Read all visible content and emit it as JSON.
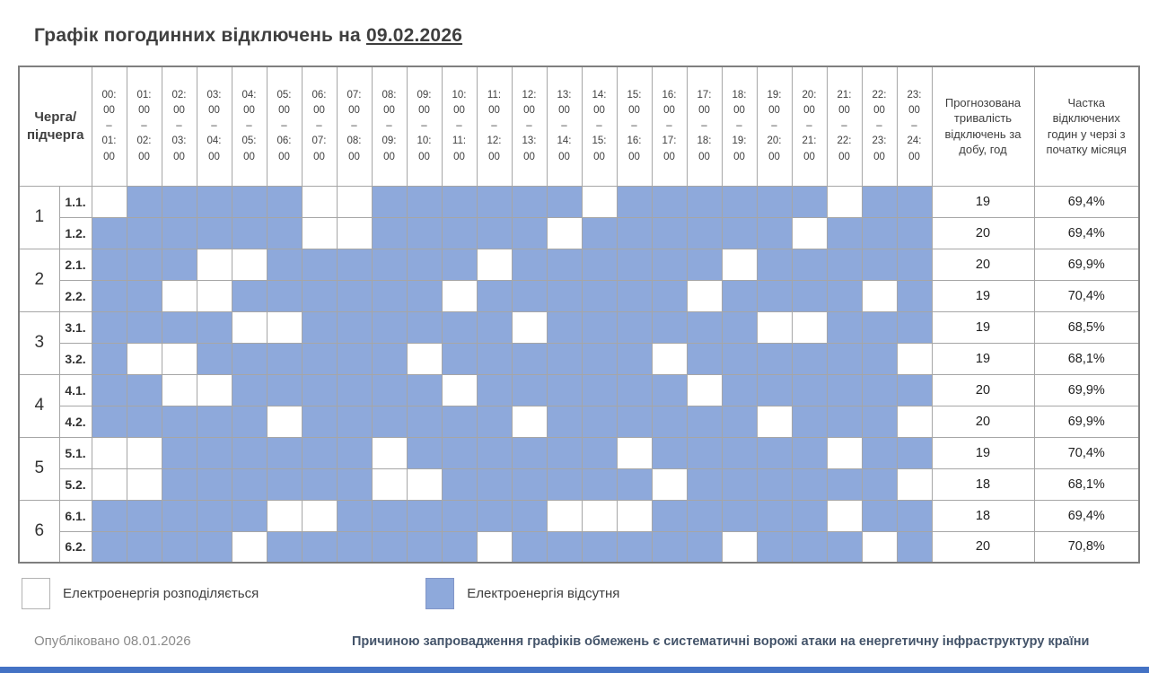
{
  "title": {
    "text": "Графік погодинних відключень на",
    "date": "09.02.2026"
  },
  "colors": {
    "outage_fill": "#8ea9db",
    "grid_line": "#a6a6a6",
    "outer_border": "#7f7f7f",
    "bottom_bar": "#4472c4",
    "reason_text": "#44546a"
  },
  "chart_data": {
    "type": "heatmap",
    "title": "Графік погодинних відключень на 09.02.2026",
    "corner_label": "Черга/\nпідчерга",
    "dash": "–",
    "col_duration_header": "Прогнозована тривалість відключень за добу, год",
    "col_share_header": "Частка відключених годин у черзі з початку місяця",
    "hours": [
      [
        "00:00",
        "01:00"
      ],
      [
        "01:00",
        "02:00"
      ],
      [
        "02:00",
        "03:00"
      ],
      [
        "03:00",
        "04:00"
      ],
      [
        "04:00",
        "05:00"
      ],
      [
        "05:00",
        "06:00"
      ],
      [
        "06:00",
        "07:00"
      ],
      [
        "07:00",
        "08:00"
      ],
      [
        "08:00",
        "09:00"
      ],
      [
        "09:00",
        "10:00"
      ],
      [
        "10:00",
        "11:00"
      ],
      [
        "11:00",
        "12:00"
      ],
      [
        "12:00",
        "13:00"
      ],
      [
        "13:00",
        "14:00"
      ],
      [
        "14:00",
        "15:00"
      ],
      [
        "15:00",
        "16:00"
      ],
      [
        "16:00",
        "17:00"
      ],
      [
        "17:00",
        "18:00"
      ],
      [
        "18:00",
        "19:00"
      ],
      [
        "19:00",
        "20:00"
      ],
      [
        "20:00",
        "21:00"
      ],
      [
        "21:00",
        "22:00"
      ],
      [
        "22:00",
        "23:00"
      ],
      [
        "23:00",
        "24:00"
      ]
    ],
    "cell_legend": {
      "on": "Електроенергія розподіляється",
      "off": "Електроенергія відсутня"
    },
    "queues": [
      {
        "queue": "1",
        "subs": [
          {
            "label": "1.1.",
            "duration": "19",
            "share": "69,4%",
            "on_hours": [
              0,
              6,
              7,
              14,
              21
            ]
          },
          {
            "label": "1.2.",
            "duration": "20",
            "share": "69,4%",
            "on_hours": [
              6,
              7,
              13,
              20
            ]
          }
        ]
      },
      {
        "queue": "2",
        "subs": [
          {
            "label": "2.1.",
            "duration": "20",
            "share": "69,9%",
            "on_hours": [
              3,
              4,
              11,
              18
            ]
          },
          {
            "label": "2.2.",
            "duration": "19",
            "share": "70,4%",
            "on_hours": [
              2,
              3,
              10,
              17,
              22
            ]
          }
        ]
      },
      {
        "queue": "3",
        "subs": [
          {
            "label": "3.1.",
            "duration": "19",
            "share": "68,5%",
            "on_hours": [
              4,
              5,
              12,
              19,
              20
            ]
          },
          {
            "label": "3.2.",
            "duration": "19",
            "share": "68,1%",
            "on_hours": [
              1,
              2,
              9,
              16,
              23
            ]
          }
        ]
      },
      {
        "queue": "4",
        "subs": [
          {
            "label": "4.1.",
            "duration": "20",
            "share": "69,9%",
            "on_hours": [
              2,
              3,
              10,
              17
            ]
          },
          {
            "label": "4.2.",
            "duration": "20",
            "share": "69,9%",
            "on_hours": [
              5,
              12,
              19,
              23
            ]
          }
        ]
      },
      {
        "queue": "5",
        "subs": [
          {
            "label": "5.1.",
            "duration": "19",
            "share": "70,4%",
            "on_hours": [
              0,
              1,
              8,
              15,
              21
            ]
          },
          {
            "label": "5.2.",
            "duration": "18",
            "share": "68,1%",
            "on_hours": [
              0,
              1,
              8,
              9,
              16,
              23
            ]
          }
        ]
      },
      {
        "queue": "6",
        "subs": [
          {
            "label": "6.1.",
            "duration": "18",
            "share": "69,4%",
            "on_hours": [
              5,
              6,
              13,
              14,
              15,
              21
            ]
          },
          {
            "label": "6.2.",
            "duration": "20",
            "share": "70,8%",
            "on_hours": [
              4,
              11,
              18,
              22
            ]
          }
        ]
      }
    ]
  },
  "legend": {
    "on_label": "Електроенергія розподіляється",
    "off_label": "Електроенергія відсутня"
  },
  "footer": {
    "published": "Опубліковано 08.01.2026",
    "reason": "Причиною запровадження графіків обмежень є систематичні ворожі атаки на енергетичну інфраструктуру країни"
  }
}
